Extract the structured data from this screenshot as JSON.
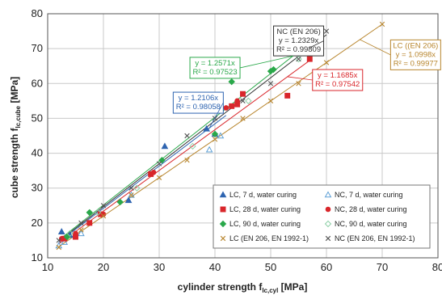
{
  "chart_data": {
    "type": "scatter",
    "xlim": [
      10,
      80
    ],
    "ylim": [
      10,
      80
    ],
    "xticks": [
      10,
      20,
      30,
      40,
      50,
      60,
      70,
      80
    ],
    "yticks": [
      10,
      20,
      30,
      40,
      50,
      60,
      70,
      80
    ],
    "xlabel": {
      "main": "cylinder strength f",
      "sub": "lc,cyl",
      "unit": " [MPa]"
    },
    "ylabel": {
      "main": "cube strength f",
      "sub": "lc,cube",
      "unit": " [MPa]"
    },
    "grid": true,
    "legend_position": "bottom-right",
    "series": [
      {
        "name": "LC, 7 d, water curing",
        "marker": "triangle",
        "filled": true,
        "color": "#2e64b0",
        "points": [
          [
            12.5,
            17.5
          ],
          [
            14,
            16.5
          ],
          [
            24.5,
            26.5
          ],
          [
            31,
            42
          ],
          [
            38.5,
            47
          ],
          [
            40,
            45.5
          ]
        ]
      },
      {
        "name": "NC, 7 d, water curing",
        "marker": "triangle",
        "filled": false,
        "color": "#5ea0d6",
        "points": [
          [
            12,
            13.5
          ],
          [
            13,
            14.5
          ],
          [
            16,
            17
          ],
          [
            25,
            28
          ],
          [
            39,
            41
          ],
          [
            41,
            45
          ]
        ]
      },
      {
        "name": "LC, 28 d, water curing",
        "marker": "square",
        "filled": true,
        "color": "#d9262b",
        "points": [
          [
            13,
            15.5
          ],
          [
            15,
            16
          ],
          [
            17.5,
            20
          ],
          [
            19.5,
            22.5
          ],
          [
            28.5,
            34
          ],
          [
            43,
            53.5
          ],
          [
            44,
            54
          ],
          [
            45,
            57
          ],
          [
            53,
            56.5
          ],
          [
            57,
            67
          ]
        ]
      },
      {
        "name": "NC, 28 d, water curing",
        "marker": "circle",
        "filled": true,
        "color": "#d9262b",
        "points": [
          [
            12.5,
            15.5
          ],
          [
            15,
            17
          ],
          [
            20,
            22.5
          ],
          [
            29,
            34.5
          ],
          [
            42,
            53
          ],
          [
            44,
            55
          ]
        ]
      },
      {
        "name": "LC, 90 d, water curing",
        "marker": "diamond",
        "filled": true,
        "color": "#2aa84a",
        "points": [
          [
            13.5,
            16
          ],
          [
            17.5,
            23
          ],
          [
            23,
            26
          ],
          [
            30.5,
            38
          ],
          [
            40,
            45.5
          ],
          [
            43,
            60.5
          ],
          [
            50,
            63.5
          ],
          [
            50.5,
            64
          ],
          [
            57,
            70.5
          ]
        ]
      },
      {
        "name": "NC, 90 d, water curing",
        "marker": "diamond",
        "filled": false,
        "color": "#8fd0a8",
        "points": [
          [
            14,
            17
          ],
          [
            19,
            23
          ],
          [
            26,
            30
          ],
          [
            36,
            42
          ],
          [
            46,
            55
          ],
          [
            55,
            67
          ]
        ]
      },
      {
        "name": "LC (EN 206, EN 1992-1)",
        "marker": "x",
        "filled": false,
        "color": "#b8862e",
        "points": [
          [
            12,
            13
          ],
          [
            16,
            18
          ],
          [
            20,
            22
          ],
          [
            25,
            28
          ],
          [
            30,
            33
          ],
          [
            35,
            38
          ],
          [
            40,
            44
          ],
          [
            45,
            50
          ],
          [
            50,
            55
          ],
          [
            55,
            60
          ],
          [
            60,
            66
          ],
          [
            70,
            77
          ]
        ]
      },
      {
        "name": "NC (EN 206, EN 1992-1)",
        "marker": "x",
        "filled": false,
        "color": "#555555",
        "points": [
          [
            12,
            15
          ],
          [
            16,
            20
          ],
          [
            20,
            25
          ],
          [
            25,
            30
          ],
          [
            30,
            37
          ],
          [
            35,
            45
          ],
          [
            40,
            50
          ],
          [
            45,
            55
          ],
          [
            50,
            60
          ],
          [
            55,
            67
          ],
          [
            60,
            75
          ]
        ]
      }
    ],
    "fits": [
      {
        "name": "NC (EN 206)",
        "slope": 1.2329,
        "equation": "y = 1.2329x",
        "r2": "R² = 0.99809",
        "color": "#333333",
        "x_range": [
          12,
          60
        ],
        "box_color": "#333333"
      },
      {
        "name": "LC ((EN 206)",
        "slope": 1.0998,
        "equation": "y = 1.0998x",
        "r2": "R² = 0.99977",
        "color": "#b8862e",
        "x_range": [
          12,
          70
        ],
        "box_color": "#b8862e"
      },
      {
        "name": "",
        "slope": 1.2571,
        "equation": "y = 1.2571x",
        "r2": "R² = 0.97523",
        "color": "#2aa84a",
        "x_range": [
          12,
          57
        ],
        "box_color": "#2aa84a"
      },
      {
        "name": "",
        "slope": 1.2106,
        "equation": "y = 1.2106x",
        "r2": "R² = 0.98058",
        "color": "#2e64b0",
        "x_range": [
          12,
          42
        ],
        "box_color": "#2e64b0"
      },
      {
        "name": "",
        "slope": 1.1685,
        "equation": "y = 1.1685x",
        "r2": "R² = 0.97542",
        "color": "#d9262b",
        "x_range": [
          12,
          57
        ],
        "box_color": "#d9262b"
      }
    ]
  }
}
